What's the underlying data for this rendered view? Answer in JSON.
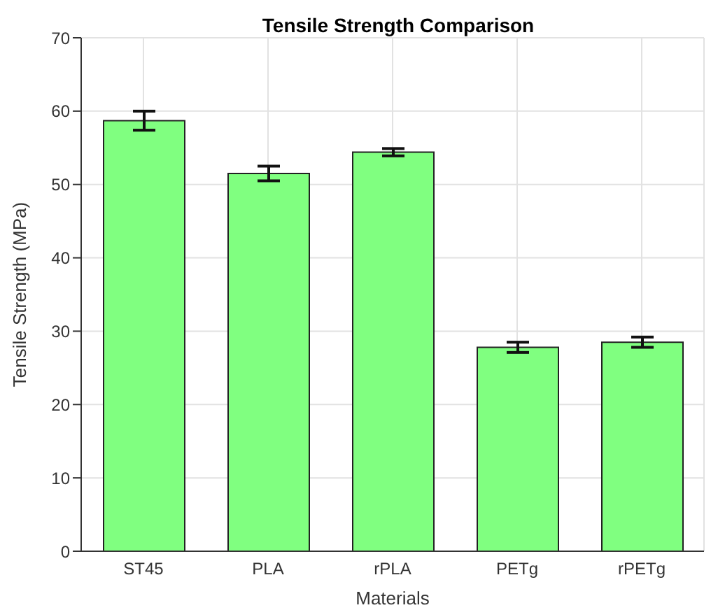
{
  "chart_data": {
    "type": "bar",
    "title": "Tensile Strength Comparison",
    "xlabel": "Materials",
    "ylabel": "Tensile Strength (MPa)",
    "categories": [
      "ST45",
      "PLA",
      "rPLA",
      "PETg",
      "rPETg"
    ],
    "values": [
      58.7,
      51.5,
      54.4,
      27.8,
      28.5
    ],
    "errors": [
      1.3,
      1.0,
      0.5,
      0.7,
      0.7
    ],
    "color": "#80ff80",
    "ylim": [
      0,
      70
    ],
    "yticks": [
      0,
      10,
      20,
      30,
      40,
      50,
      60,
      70
    ],
    "grid": true
  }
}
